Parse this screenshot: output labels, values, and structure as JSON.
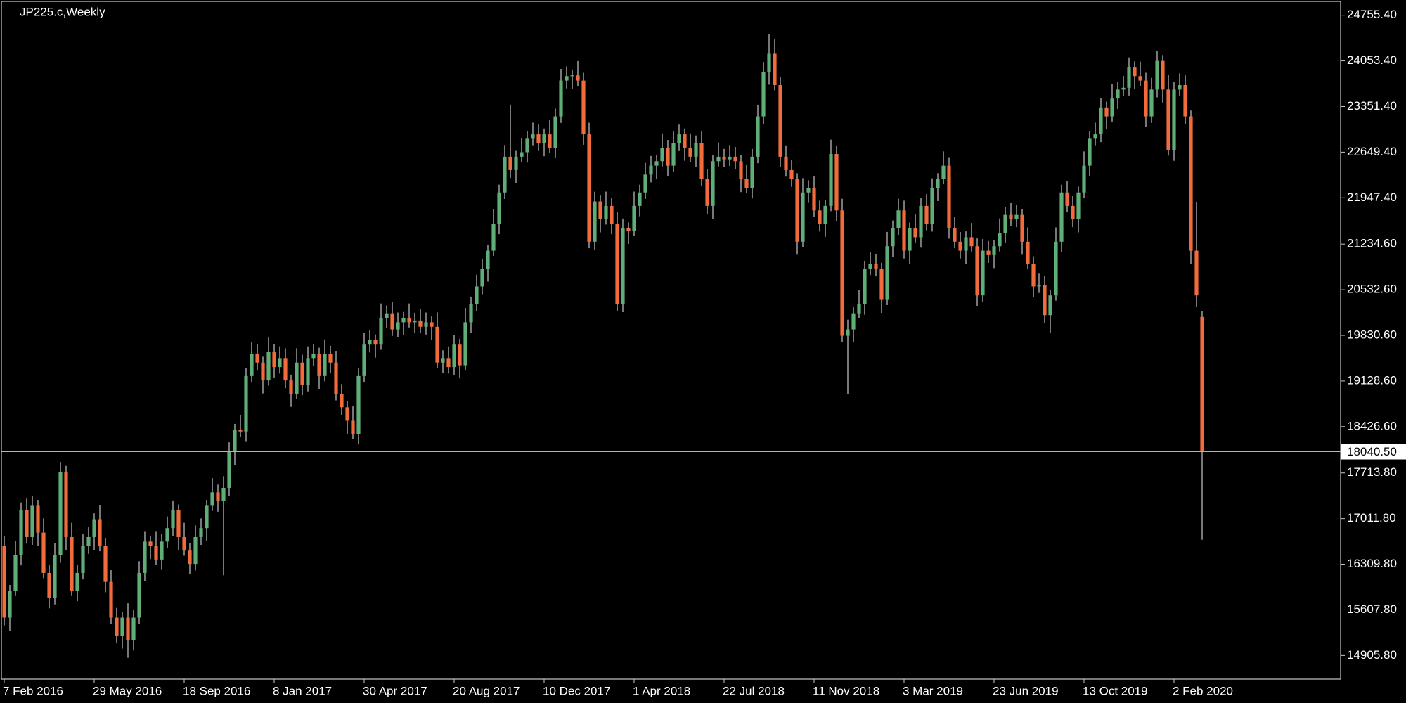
{
  "chart_data": {
    "type": "candlestick",
    "title": "JP225.c,Weekly",
    "up_color": "#5fae78",
    "down_color": "#f26b3d",
    "wick_color": "#c8c8c8",
    "ylim": [
      14542,
      24968
    ],
    "yticks": [
      {
        "value": 24755.4,
        "label": "24755.40"
      },
      {
        "value": 24053.4,
        "label": "24053.40"
      },
      {
        "value": 23351.4,
        "label": "23351.40"
      },
      {
        "value": 22649.4,
        "label": "22649.40"
      },
      {
        "value": 21947.4,
        "label": "21947.40"
      },
      {
        "value": 21234.6,
        "label": "21234.60"
      },
      {
        "value": 20532.6,
        "label": "20532.60"
      },
      {
        "value": 19830.6,
        "label": "19830.60"
      },
      {
        "value": 19128.6,
        "label": "19128.60"
      },
      {
        "value": 18426.6,
        "label": "18426.60"
      },
      {
        "value": 17713.8,
        "label": "17713.80"
      },
      {
        "value": 17011.8,
        "label": "17011.80"
      },
      {
        "value": 16309.8,
        "label": "16309.80"
      },
      {
        "value": 15607.8,
        "label": "15607.80"
      },
      {
        "value": 14905.8,
        "label": "14905.80"
      }
    ],
    "current_price": {
      "value": 18040.5,
      "label": "18040.50"
    },
    "categories": [
      "7 Feb 2016",
      null,
      null,
      null,
      null,
      null,
      null,
      null,
      null,
      null,
      null,
      null,
      null,
      null,
      null,
      null,
      "29 May 2016",
      null,
      null,
      null,
      null,
      null,
      null,
      null,
      null,
      null,
      null,
      null,
      null,
      null,
      null,
      null,
      "18 Sep 2016",
      null,
      null,
      null,
      null,
      null,
      null,
      null,
      null,
      null,
      null,
      null,
      null,
      null,
      null,
      null,
      "8 Jan 2017",
      null,
      null,
      null,
      null,
      null,
      null,
      null,
      null,
      null,
      null,
      null,
      null,
      null,
      null,
      null,
      "30 Apr 2017",
      null,
      null,
      null,
      null,
      null,
      null,
      null,
      null,
      null,
      null,
      null,
      null,
      null,
      null,
      null,
      "20 Aug 2017",
      null,
      null,
      null,
      null,
      null,
      null,
      null,
      null,
      null,
      null,
      null,
      null,
      null,
      null,
      null,
      "10 Dec 2017",
      null,
      null,
      null,
      null,
      null,
      null,
      null,
      null,
      null,
      null,
      null,
      null,
      null,
      null,
      null,
      "1 Apr 2018",
      null,
      null,
      null,
      null,
      null,
      null,
      null,
      null,
      null,
      null,
      null,
      null,
      null,
      null,
      null,
      "22 Jul 2018",
      null,
      null,
      null,
      null,
      null,
      null,
      null,
      null,
      null,
      null,
      null,
      null,
      null,
      null,
      null,
      "11 Nov 2018",
      null,
      null,
      null,
      null,
      null,
      null,
      null,
      null,
      null,
      null,
      null,
      null,
      null,
      null,
      null,
      "3 Mar 2019",
      null,
      null,
      null,
      null,
      null,
      null,
      null,
      null,
      null,
      null,
      null,
      null,
      null,
      null,
      null,
      "23 Jun 2019",
      null,
      null,
      null,
      null,
      null,
      null,
      null,
      null,
      null,
      null,
      null,
      null,
      null,
      null,
      null,
      "13 Oct 2019",
      null,
      null,
      null,
      null,
      null,
      null,
      null,
      null,
      null,
      null,
      null,
      null,
      null,
      null,
      null,
      "2 Feb 2020",
      null,
      null,
      null,
      null,
      null
    ],
    "open": [
      16589,
      15488,
      15901,
      16452,
      17140,
      16727,
      17209,
      16796,
      16176,
      15791,
      16452,
      17732,
      16727,
      15901,
      16176,
      16589,
      16727,
      17002,
      16589,
      16038,
      15488,
      15212,
      15488,
      15143,
      15488,
      16176,
      16658,
      16589,
      16382,
      16658,
      16865,
      17140,
      16727,
      16520,
      16314,
      16727,
      16865,
      17209,
      17415,
      17278,
      17484,
      18035,
      18379,
      18352,
      19205,
      19550,
      19412,
      19137,
      19577,
      19343,
      19481,
      19137,
      18930,
      19412,
      19068,
      19481,
      19550,
      19205,
      19550,
      19412,
      18930,
      18724,
      18517,
      18311,
      19205,
      19688,
      19756,
      19688,
      20101,
      20170,
      19922,
      20032,
      20101,
      20032,
      20059,
      19963,
      20032,
      19963,
      19412,
      19481,
      19343,
      19688,
      19370,
      20032,
      20307,
      20583,
      20858,
      21133,
      21547,
      22029,
      22579,
      22373,
      22579,
      22648,
      22855,
      22923,
      22786,
      22923,
      22717,
      23199,
      23750,
      23819,
      23830,
      23750,
      22923,
      21271,
      21891,
      21615,
      21822,
      21547,
      20307,
      21478,
      21436,
      21822,
      22029,
      22304,
      22441,
      22510,
      22717,
      22441,
      22786,
      22923,
      22717,
      22579,
      22786,
      22235,
      21822,
      22510,
      22579,
      22538,
      22579,
      22510,
      22235,
      22097,
      22579,
      23199,
      23887,
      24163,
      23681,
      22579,
      22373,
      22235,
      21271,
      22029,
      22097,
      21753,
      21547,
      21822,
      22621,
      21753,
      19825,
      19922,
      20170,
      20307,
      20858,
      20927,
      20858,
      20376,
      21202,
      21478,
      21753,
      21133,
      21478,
      21340,
      21822,
      21547,
      22097,
      22235,
      22441,
      21478,
      21271,
      21133,
      21340,
      21202,
      20445,
      21133,
      21065,
      21202,
      21409,
      21684,
      21615,
      21684,
      21271,
      20927,
      20583,
      20600,
      20142,
      20445,
      21271,
      22029,
      21822,
      21615,
      22029,
      22441,
      22855,
      22923,
      23337,
      23199,
      23474,
      23612,
      23640,
      23956,
      23819,
      23750,
      23199,
      23612,
      24053,
      23612,
      22676,
      23612,
      23681,
      23199,
      21133,
      20114
    ],
    "high": [
      16739,
      15991,
      16672,
      17260,
      17320,
      17359,
      17299,
      17016,
      16296,
      16632,
      17882,
      17822,
      16947,
      16296,
      16769,
      16877,
      17092,
      17222,
      16709,
      16218,
      15638,
      15578,
      15708,
      15608,
      16356,
      16808,
      16748,
      16809,
      16778,
      17045,
      17290,
      17230,
      16947,
      16640,
      16907,
      17015,
      17299,
      17635,
      17535,
      17664,
      18185,
      18469,
      18599,
      19325,
      19730,
      19700,
      19502,
      19797,
      19697,
      19661,
      19631,
      19227,
      19632,
      19532,
      19661,
      19700,
      19640,
      19770,
      19670,
      19592,
      19080,
      18814,
      18737,
      19325,
      19868,
      19906,
      19846,
      20321,
      20290,
      20350,
      20182,
      20191,
      20321,
      20179,
      20239,
      20182,
      20122,
      20183,
      19601,
      19661,
      19838,
      19778,
      20252,
      20427,
      20763,
      21008,
      21223,
      21767,
      22149,
      22759,
      23380,
      22669,
      22868,
      22975,
      23103,
      23073,
      23013,
      23143,
      23319,
      23930,
      23969,
      23920,
      24050,
      23870,
      23103,
      22041,
      21981,
      22042,
      21942,
      21727,
      21628,
      21568,
      22042,
      22149,
      22484,
      22591,
      22600,
      22937,
      22837,
      22966,
      23073,
      23013,
      22937,
      22906,
      22966,
      22385,
      22600,
      22799,
      22699,
      22759,
      22729,
      22600,
      22455,
      22699,
      23379,
      24037,
      24466,
      24383,
      23801,
      22753,
      22523,
      22325,
      22249,
      22217,
      22277,
      21903,
      21912,
      22841,
      22741,
      21933,
      20072,
      20260,
      20527,
      20978,
      21107,
      21077,
      20948,
      21422,
      21598,
      21933,
      21903,
      21568,
      21698,
      21942,
      22002,
      22247,
      22325,
      22661,
      22561,
      21658,
      21421,
      21430,
      21560,
      21322,
      21313,
      21283,
      21292,
      21629,
      21804,
      21864,
      21834,
      21774,
      21491,
      21047,
      20780,
      20750,
      20535,
      21491,
      22149,
      22209,
      21972,
      22119,
      22661,
      22975,
      23103,
      23487,
      23427,
      23694,
      23732,
      23820,
      24106,
      24046,
      24040,
      23870,
      23792,
      24203,
      24143,
      23832,
      23732,
      23861,
      23831,
      23289,
      21878,
      20200
    ],
    "low": [
      15368,
      15288,
      15821,
      16292,
      16627,
      16607,
      16596,
      16096,
      15631,
      15691,
      16332,
      16527,
      15821,
      15741,
      16076,
      16469,
      16527,
      16509,
      15878,
      15388,
      15092,
      15012,
      14870,
      14983,
      15388,
      16056,
      16389,
      16302,
      16222,
      16558,
      16745,
      16527,
      16440,
      16154,
      16214,
      16607,
      16665,
      17129,
      17118,
      16140,
      17364,
      17835,
      18272,
      18192,
      19105,
      19292,
      18937,
      19057,
      19183,
      19243,
      19017,
      18730,
      18850,
      18908,
      18968,
      19361,
      19005,
      19125,
      19252,
      18830,
      18604,
      18317,
      18231,
      18151,
      19105,
      19568,
      19488,
      19608,
      19941,
      19822,
      19802,
      19832,
      19952,
      19872,
      19863,
      19843,
      19763,
      19332,
      19252,
      19243,
      19223,
      19170,
      19290,
      19872,
      20207,
      20463,
      20658,
      21053,
      21387,
      21929,
      22253,
      22173,
      22499,
      22488,
      22755,
      22666,
      22586,
      22637,
      22557,
      23099,
      23630,
      23619,
      23670,
      22763,
      21171,
      21151,
      21415,
      21535,
      21387,
      20207,
      20187,
      21236,
      21356,
      21662,
      21929,
      22184,
      22241,
      22430,
      22281,
      22341,
      22666,
      22517,
      22499,
      22419,
      22135,
      21702,
      21622,
      22430,
      22419,
      22438,
      22390,
      22035,
      22017,
      21937,
      22479,
      23079,
      23687,
      23601,
      22419,
      22273,
      22115,
      21071,
      21191,
      21869,
      21653,
      21427,
      21347,
      21742,
      21593,
      19725,
      18930,
      19722,
      20090,
      20147,
      20758,
      20738,
      20176,
      20296,
      21042,
      21378,
      21013,
      20933,
      21260,
      21180,
      21447,
      21427,
      21897,
      22155,
      21318,
      21171,
      21013,
      20933,
      21122,
      20285,
      20345,
      20945,
      20865,
      21122,
      21249,
      21515,
      21495,
      21071,
      20847,
      20423,
      20483,
      20022,
      19870,
      20365,
      21111,
      21722,
      21495,
      21415,
      21949,
      22281,
      22755,
      22803,
      22999,
      23119,
      23314,
      23512,
      23520,
      23619,
      23670,
      23039,
      23099,
      23492,
      23412,
      22596,
      22516,
      23512,
      23079,
      20933,
      20265,
      16686
    ],
    "close": [
      15488,
      15901,
      16452,
      17140,
      16727,
      17209,
      16796,
      16176,
      15791,
      16452,
      17732,
      16727,
      15901,
      16176,
      16589,
      16727,
      17002,
      16589,
      16038,
      15488,
      15212,
      15488,
      15143,
      15488,
      16176,
      16658,
      16589,
      16382,
      16658,
      16865,
      17140,
      16727,
      16520,
      16314,
      16727,
      16865,
      17209,
      17415,
      17278,
      17484,
      18035,
      18379,
      18352,
      19205,
      19550,
      19412,
      19137,
      19577,
      19343,
      19481,
      19137,
      18930,
      19412,
      19068,
      19481,
      19550,
      19205,
      19550,
      19412,
      18930,
      18724,
      18517,
      18311,
      19205,
      19688,
      19756,
      19688,
      20101,
      20170,
      19922,
      20032,
      20101,
      20032,
      20059,
      19963,
      20032,
      19963,
      19412,
      19481,
      19343,
      19688,
      19370,
      20032,
      20307,
      20583,
      20858,
      21133,
      21547,
      22029,
      22579,
      22373,
      22579,
      22648,
      22855,
      22923,
      22786,
      22923,
      22717,
      23199,
      23750,
      23819,
      23830,
      23750,
      22923,
      21271,
      21891,
      21615,
      21822,
      21547,
      20307,
      21478,
      21436,
      21822,
      22029,
      22304,
      22441,
      22510,
      22717,
      22441,
      22786,
      22923,
      22717,
      22579,
      22786,
      22235,
      21822,
      22510,
      22579,
      22538,
      22579,
      22510,
      22235,
      22097,
      22579,
      23199,
      23887,
      24163,
      23681,
      22579,
      22373,
      22235,
      21271,
      22029,
      22097,
      21753,
      21547,
      21822,
      22621,
      21753,
      19825,
      19922,
      20170,
      20307,
      20858,
      20927,
      20858,
      20376,
      21202,
      21478,
      21753,
      21133,
      21478,
      21340,
      21822,
      21547,
      22097,
      22235,
      22441,
      21478,
      21271,
      21133,
      21340,
      21202,
      20445,
      21133,
      21065,
      21202,
      21409,
      21684,
      21615,
      21684,
      21271,
      20927,
      20583,
      20600,
      20142,
      20445,
      21271,
      22029,
      21822,
      21615,
      22029,
      22441,
      22855,
      22923,
      23337,
      23199,
      23474,
      23612,
      23640,
      23956,
      23819,
      23750,
      23199,
      23612,
      24053,
      23612,
      22676,
      23612,
      23681,
      23199,
      21133,
      20445,
      18040.5
    ]
  }
}
